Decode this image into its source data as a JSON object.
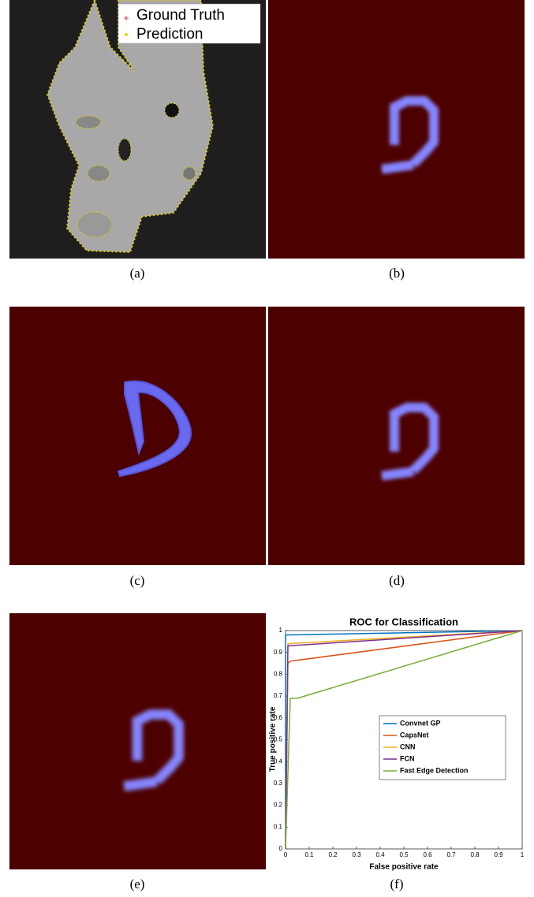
{
  "panels": [
    {
      "caption": "(a)",
      "legend": [
        "Ground Truth",
        "Prediction"
      ]
    },
    {
      "caption": "(b)"
    },
    {
      "caption": "(c)"
    },
    {
      "caption": "(d)"
    },
    {
      "caption": "(e)"
    },
    {
      "caption": "(f)"
    }
  ],
  "chart_data": {
    "type": "line",
    "title": "ROC for Classification",
    "xlabel": "False positive rate",
    "ylabel": "True positive rate",
    "xlim": [
      0,
      1
    ],
    "ylim": [
      0,
      1
    ],
    "xticks": [
      0,
      0.1,
      0.2,
      0.3,
      0.4,
      0.5,
      0.6,
      0.7,
      0.8,
      0.9,
      1
    ],
    "yticks": [
      0,
      0.1,
      0.2,
      0.3,
      0.4,
      0.5,
      0.6,
      0.7,
      0.8,
      0.9,
      1
    ],
    "grid": false,
    "legend": "right",
    "series": [
      {
        "name": "Convnet GP",
        "color": "#0072bd",
        "x": [
          0,
          0,
          0.01,
          1
        ],
        "values": [
          0,
          0.98,
          0.98,
          1
        ]
      },
      {
        "name": "CapsNet",
        "color": "#d95319",
        "x": [
          0,
          0.01,
          0.02,
          1
        ],
        "values": [
          0,
          0.85,
          0.86,
          1
        ]
      },
      {
        "name": "CNN",
        "color": "#edb120",
        "x": [
          0,
          0.01,
          1
        ],
        "values": [
          0,
          0.94,
          1
        ]
      },
      {
        "name": "FCN",
        "color": "#7e2f8e",
        "x": [
          0,
          0.01,
          1
        ],
        "values": [
          0,
          0.93,
          1
        ]
      },
      {
        "name": "Fast Edge Detection",
        "color": "#77ac30",
        "x": [
          0,
          0.02,
          0.05,
          1
        ],
        "values": [
          0,
          0.69,
          0.69,
          1
        ]
      }
    ]
  }
}
